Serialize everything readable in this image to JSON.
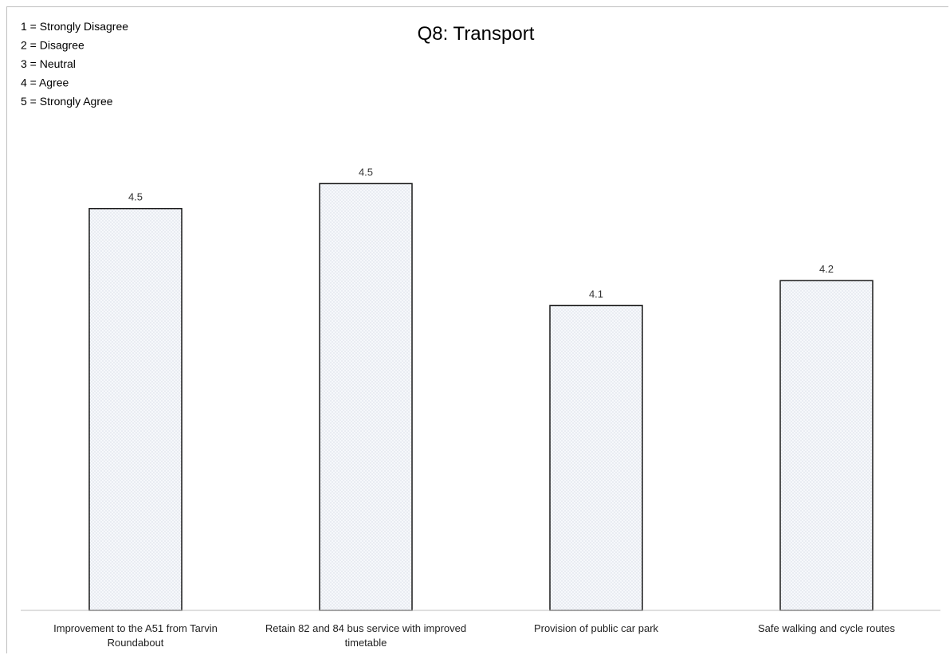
{
  "chart_data": {
    "type": "bar",
    "title": "Q8: Transport",
    "xlabel": "",
    "ylabel": "",
    "legend_notes": [
      "1 = Strongly Disagree",
      "2 = Disagree",
      "3 = Neutral",
      "4 = Agree",
      "5 = Strongly Agree"
    ],
    "categories": [
      [
        "Improvement to the A51 from Tarvin",
        "Roundabout"
      ],
      [
        "Retain 82 and 84 bus service with improved",
        "timetable"
      ],
      [
        "Provision of public car park"
      ],
      [
        "Safe walking and cycle routes"
      ]
    ],
    "values": [
      4.45,
      4.54,
      4.1,
      4.19
    ],
    "data_labels": [
      "4.5",
      "4.5",
      "4.1",
      "4.2"
    ],
    "ylim": [
      3.0,
      4.8
    ],
    "grid": false,
    "bar_fill": "#f3f5f9",
    "bar_stroke": "#1a1a1a"
  }
}
